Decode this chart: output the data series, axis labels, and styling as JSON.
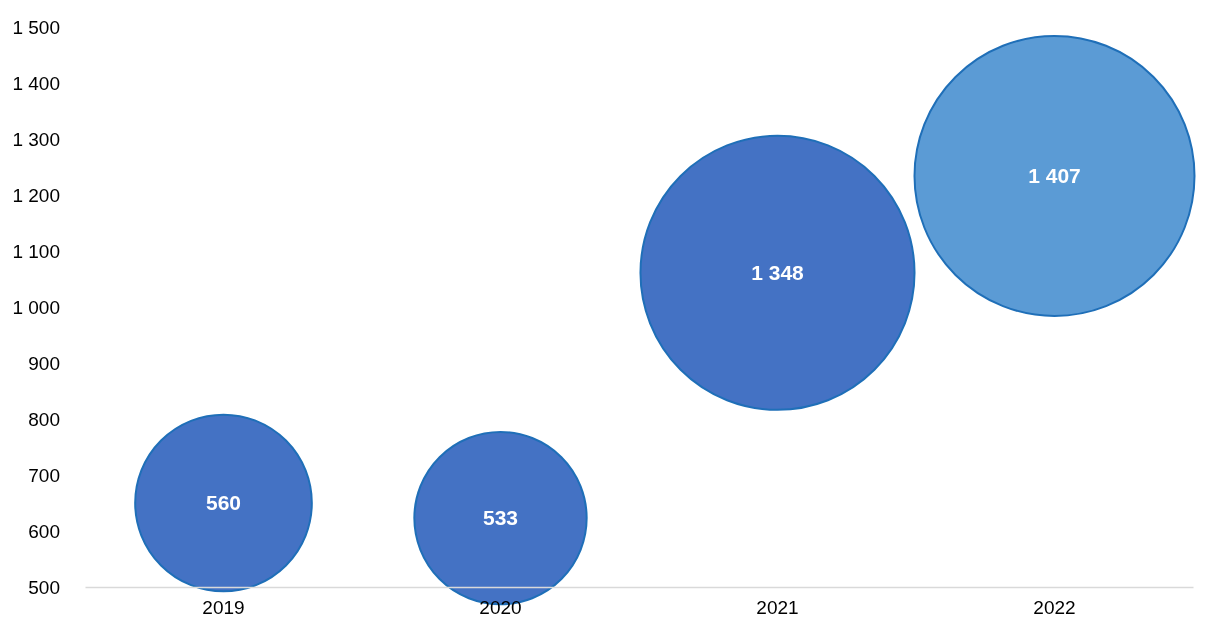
{
  "chart_data": {
    "type": "bubble",
    "categories": [
      "2019",
      "2020",
      "2021",
      "2022"
    ],
    "values": [
      650,
      623,
      1061,
      1234
    ],
    "sizes": [
      560,
      533,
      1348,
      1407
    ],
    "value_labels": [
      "560",
      "533",
      "1 348",
      "1 407"
    ],
    "colors": [
      "#4472c4",
      "#4472c4",
      "#4472c4",
      "#5b9bd5"
    ],
    "ylim": [
      500,
      1500
    ],
    "yticks": [
      500,
      600,
      700,
      800,
      900,
      {
        "value": 1000,
        "label": "1 000"
      },
      {
        "value": 1100,
        "label": "1 100"
      },
      {
        "value": 1200,
        "label": "1 200"
      },
      {
        "value": 1300,
        "label": "1 300"
      },
      {
        "value": 1400,
        "label": "1 400"
      },
      {
        "value": 1500,
        "label": "1 500"
      }
    ],
    "grid": false
  }
}
